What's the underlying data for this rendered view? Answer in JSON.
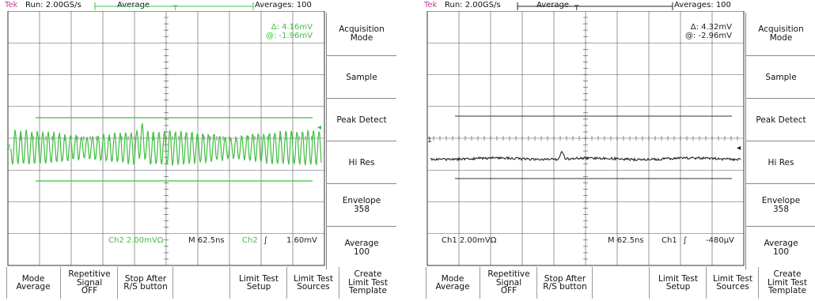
{
  "left": {
    "status": {
      "brand": "Tek",
      "run": "Run: 2.00GS/s",
      "acq": "Average",
      "avg_count": "Averages: 100"
    },
    "cursor": {
      "delta": "Δ: 4.16mV",
      "at": "@: -1.96mV"
    },
    "readout": {
      "ch_scale": "Ch2  2.00mVΩ",
      "timebase": "M 62.5ns",
      "trig_src": "Ch2",
      "trig_slope": "∫",
      "trig_level": "1.60mV"
    },
    "marker": "2",
    "trace_color": "#3fbf3f"
  },
  "right": {
    "status": {
      "brand": "Tek",
      "run": "Run: 2.00GS/s",
      "acq": "Average",
      "avg_count": "Averages: 100"
    },
    "cursor": {
      "delta": "Δ: 4.32mV",
      "at": "@: -2.96mV"
    },
    "readout": {
      "ch_scale": "Ch1  2.00mVΩ",
      "timebase": "M 62.5ns",
      "trig_src": "Ch1",
      "trig_slope": "∫",
      "trig_level": "-480µV"
    },
    "marker": "1",
    "trace_color": "#222222"
  },
  "side_menu": [
    {
      "label": "Acquisition\nMode"
    },
    {
      "label": "Sample"
    },
    {
      "label": "Peak Detect"
    },
    {
      "label": "Hi Res"
    },
    {
      "label": "Envelope\n358"
    },
    {
      "label": "Average\n100"
    }
  ],
  "bottom_menu": [
    {
      "label": "Mode\nAverage"
    },
    {
      "label": "Repetitive\nSignal\nOFF"
    },
    {
      "label": "Stop After\nR/S button"
    },
    {
      "label": ""
    },
    {
      "label": "Limit Test\nSetup"
    },
    {
      "label": "Limit Test\nSources"
    },
    {
      "label": "Create\nLimit Test\nTemplate"
    }
  ],
  "colors": {
    "brand": "#c0399b",
    "grid": "#444444",
    "menu_border": "#888888"
  }
}
